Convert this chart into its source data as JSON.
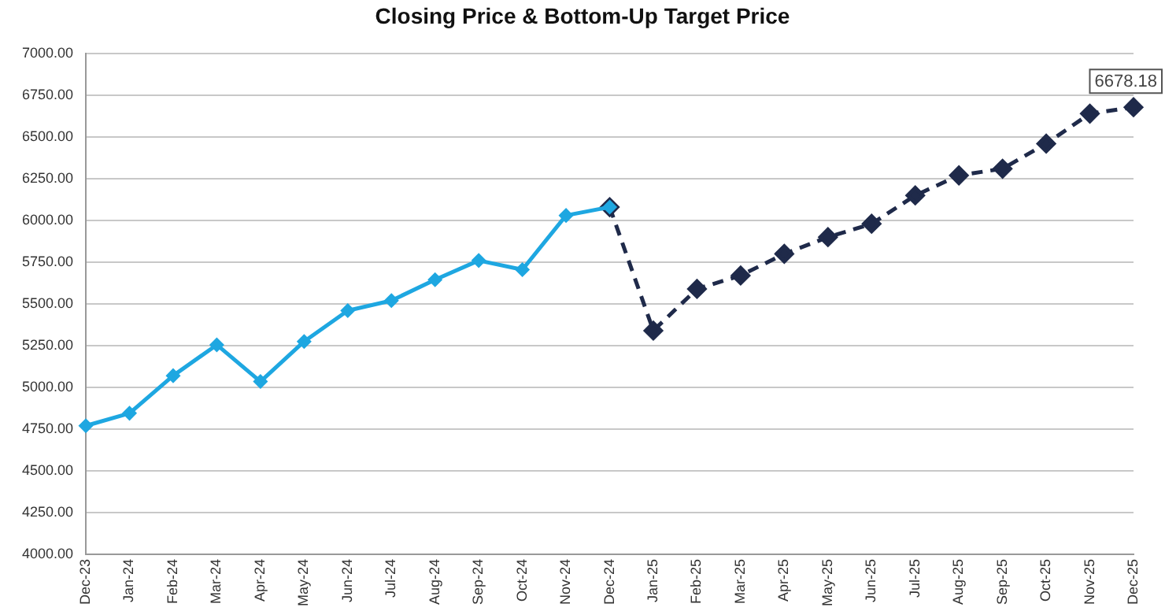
{
  "chart_data": {
    "type": "line",
    "title": "Closing Price & Bottom-Up Target Price",
    "categories": [
      "Dec-23",
      "Jan-24",
      "Feb-24",
      "Mar-24",
      "Apr-24",
      "May-24",
      "Jun-24",
      "Jul-24",
      "Aug-24",
      "Sep-24",
      "Oct-24",
      "Nov-24",
      "Dec-24",
      "Jan-25",
      "Feb-25",
      "Mar-25",
      "Apr-25",
      "May-25",
      "Jun-25",
      "Jul-25",
      "Aug-25",
      "Sep-25",
      "Oct-25",
      "Nov-25",
      "Dec-25"
    ],
    "series": [
      {
        "color": "#1ea7e1",
        "line_style": "solid",
        "values": [
          4770,
          4845,
          5070,
          5255,
          5035,
          5275,
          5460,
          5520,
          5645,
          5760,
          5705,
          6030,
          6080,
          null,
          null,
          null,
          null,
          null,
          null,
          null,
          null,
          null,
          null,
          null,
          null
        ]
      },
      {
        "color": "#1f2a4a",
        "line_style": "dashed",
        "values": [
          null,
          null,
          null,
          null,
          null,
          null,
          null,
          null,
          null,
          null,
          null,
          null,
          6080,
          5340,
          5590,
          5670,
          5800,
          5900,
          5980,
          6150,
          6270,
          6310,
          6460,
          6640,
          6678.18
        ],
        "value_labels": [
          null,
          null,
          null,
          null,
          null,
          null,
          null,
          null,
          null,
          null,
          null,
          null,
          null,
          null,
          null,
          null,
          null,
          null,
          null,
          null,
          null,
          null,
          null,
          null,
          "6678.18"
        ]
      }
    ],
    "ylim": [
      4000,
      7000
    ],
    "yticks": [
      {
        "value": 4000,
        "label": "4000.00"
      },
      {
        "value": 4250,
        "label": "4250.00"
      },
      {
        "value": 4500,
        "label": "4500.00"
      },
      {
        "value": 4750,
        "label": "4750.00"
      },
      {
        "value": 5000,
        "label": "5000.00"
      },
      {
        "value": 5250,
        "label": "5250.00"
      },
      {
        "value": 5500,
        "label": "5500.00"
      },
      {
        "value": 5750,
        "label": "5750.00"
      },
      {
        "value": 6000,
        "label": "6000.00"
      },
      {
        "value": 6250,
        "label": "6250.00"
      },
      {
        "value": 6500,
        "label": "6500.00"
      },
      {
        "value": 6750,
        "label": "6750.00"
      },
      {
        "value": 7000,
        "label": "7000.00"
      }
    ],
    "grid": "y",
    "legend": false,
    "marker": "diamond"
  }
}
